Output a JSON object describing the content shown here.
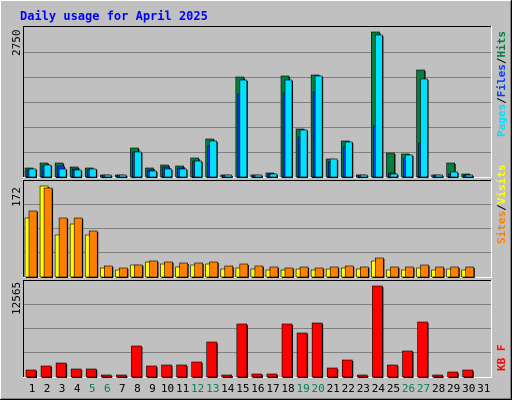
{
  "title": "Daily usage for April 2025",
  "colors": {
    "background": "#c0c0c0",
    "title": "#0000ff",
    "hits": "#008040",
    "files": "#0040ff",
    "pages": "#00e0ff",
    "visits": "#ffff00",
    "sites": "#ff8000",
    "kbytes": "#ff0000",
    "weekend_day": "#00805c"
  },
  "chart_data": [
    {
      "type": "bar",
      "title": "Daily usage for April 2025",
      "categories": [
        "1",
        "2",
        "3",
        "4",
        "5",
        "6",
        "7",
        "8",
        "9",
        "10",
        "11",
        "12",
        "13",
        "14",
        "15",
        "16",
        "17",
        "18",
        "19",
        "20",
        "21",
        "22",
        "23",
        "24",
        "25",
        "26",
        "27",
        "28",
        "29",
        "30",
        "31"
      ],
      "weekend_days": [
        "5",
        "6",
        "12",
        "13",
        "19",
        "20",
        "26",
        "27"
      ],
      "y_tick_label": "2750",
      "ymax": 2750,
      "legend_text": {
        "hits": "Hits",
        "files": "Files",
        "pages": "Pages",
        "sep": "/"
      },
      "series": [
        {
          "name": "Hits",
          "values": [
            160,
            260,
            260,
            180,
            160,
            40,
            40,
            540,
            160,
            230,
            210,
            360,
            700,
            40,
            1860,
            40,
            70,
            1880,
            890,
            1900,
            340,
            660,
            40,
            2700,
            450,
            420,
            1990,
            40,
            260,
            60,
            0
          ]
        },
        {
          "name": "Files",
          "values": [
            130,
            210,
            200,
            150,
            130,
            30,
            30,
            460,
            130,
            190,
            170,
            290,
            580,
            30,
            1550,
            30,
            60,
            1570,
            740,
            1580,
            280,
            550,
            30,
            950,
            80,
            350,
            630,
            30,
            60,
            40,
            0
          ]
        },
        {
          "name": "Pages",
          "values": [
            140,
            230,
            140,
            130,
            150,
            30,
            40,
            460,
            110,
            140,
            150,
            290,
            660,
            40,
            1810,
            40,
            60,
            1810,
            870,
            1870,
            340,
            650,
            40,
            2640,
            60,
            410,
            1820,
            40,
            90,
            40,
            0
          ]
        }
      ]
    },
    {
      "type": "bar",
      "categories": [
        "1",
        "2",
        "3",
        "4",
        "5",
        "6",
        "7",
        "8",
        "9",
        "10",
        "11",
        "12",
        "13",
        "14",
        "15",
        "16",
        "17",
        "18",
        "19",
        "20",
        "21",
        "22",
        "23",
        "24",
        "25",
        "26",
        "27",
        "28",
        "29",
        "30",
        "31"
      ],
      "y_tick_label": "172",
      "ymax": 172,
      "legend_text": {
        "visits": "Visits",
        "sites": "Sites",
        "sep": "/"
      },
      "series": [
        {
          "name": "Visits",
          "values": [
            107,
            165,
            76,
            96,
            76,
            17,
            12,
            21,
            27,
            24,
            19,
            21,
            23,
            14,
            17,
            15,
            12,
            12,
            14,
            12,
            14,
            16,
            14,
            29,
            13,
            12,
            16,
            12,
            14,
            12,
            0
          ]
        },
        {
          "name": "Sites",
          "values": [
            119,
            161,
            106,
            106,
            83,
            20,
            17,
            22,
            29,
            28,
            25,
            26,
            28,
            20,
            23,
            20,
            18,
            16,
            19,
            17,
            18,
            20,
            19,
            35,
            19,
            18,
            22,
            19,
            18,
            19,
            0
          ]
        }
      ]
    },
    {
      "type": "bar",
      "categories": [
        "1",
        "2",
        "3",
        "4",
        "5",
        "6",
        "7",
        "8",
        "9",
        "10",
        "11",
        "12",
        "13",
        "14",
        "15",
        "16",
        "17",
        "18",
        "19",
        "20",
        "21",
        "22",
        "23",
        "24",
        "25",
        "26",
        "27",
        "28",
        "29",
        "30",
        "31"
      ],
      "y_tick_label": "12565",
      "ymax": 12565,
      "legend_text": {
        "kbytes": "KB F"
      },
      "series": [
        {
          "name": "KB F",
          "values": [
            950,
            1420,
            1870,
            1000,
            1080,
            310,
            310,
            4060,
            1390,
            1550,
            1550,
            1940,
            4600,
            310,
            7030,
            390,
            390,
            7030,
            5820,
            7190,
            1240,
            2260,
            310,
            12100,
            1550,
            3480,
            7270,
            310,
            700,
            860,
            0
          ]
        }
      ]
    }
  ]
}
